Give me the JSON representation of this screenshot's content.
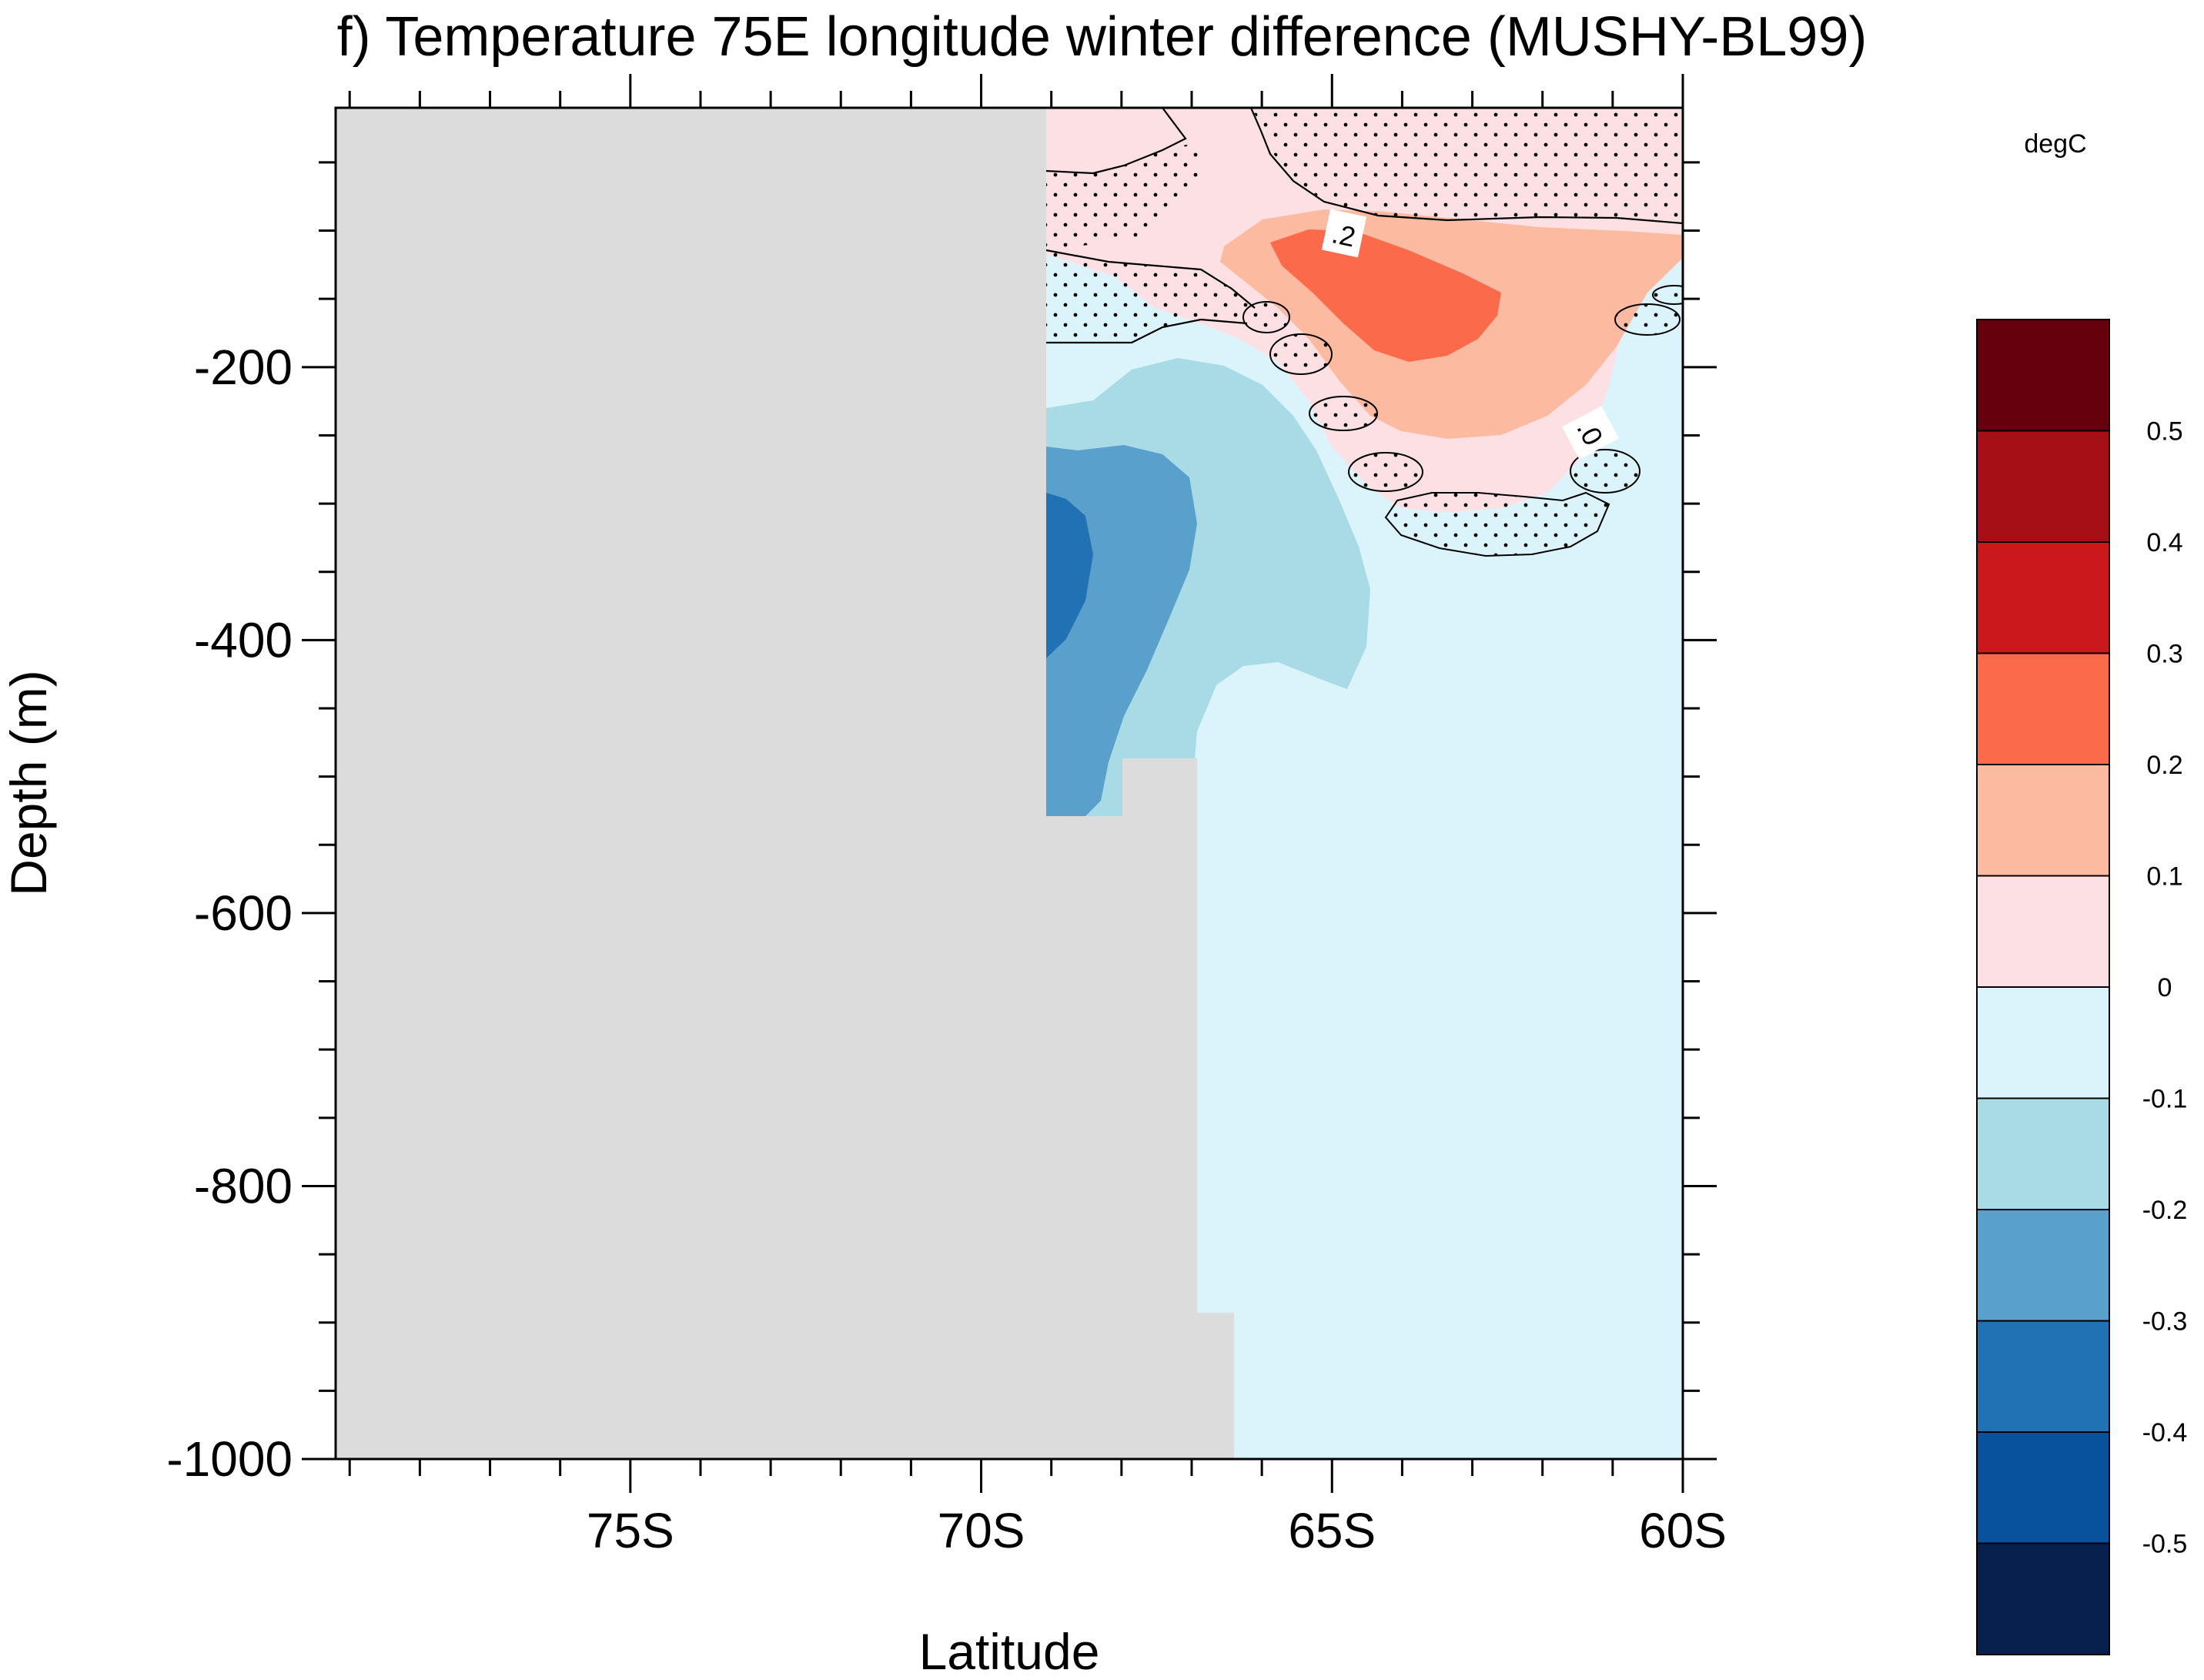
{
  "title": "f) Temperature 75E longitude winter difference (MUSHY-BL99)",
  "units": "degC",
  "chart_data": {
    "type": "contour",
    "title": "f) Temperature 75E longitude winter difference (MUSHY-BL99)",
    "xlabel": "Latitude",
    "ylabel": "Depth (m)",
    "x_ticks": [
      "75S",
      "70S",
      "65S",
      "60S"
    ],
    "y_ticks": [
      "-200",
      "-400",
      "-600",
      "-800",
      "-1000"
    ],
    "xlim": [
      -79.2,
      -60
    ],
    "ylim": [
      -1000,
      -10
    ],
    "contour_labels": [
      ".2",
      ".0"
    ],
    "colorbar": {
      "label": "degC",
      "levels": [
        "0.5",
        "0.4",
        "0.3",
        "0.2",
        "0.1",
        "0",
        "-0.1",
        "-0.2",
        "-0.3",
        "-0.4",
        "-0.5"
      ],
      "colors": [
        "#67000d",
        "#a50f15",
        "#cb181d",
        "#fb6a4a",
        "#fcbba1",
        "#fde0e3",
        "#dbf3fb",
        "#a8dbe5",
        "#5aa0cd",
        "#2171b5",
        "#08519c",
        "#08204e"
      ]
    },
    "regions": [
      {
        "name": "land-mask",
        "color": "#dcdcdc"
      },
      {
        "name": "background",
        "value_range": [
          -0.1,
          0
        ],
        "color": "#dbf3fb"
      },
      {
        "name": "pos-0-0.1",
        "value_range": [
          0,
          0.1
        ],
        "color": "#fde0e3"
      },
      {
        "name": "pos-0.1-0.2",
        "value_range": [
          0.1,
          0.2
        ],
        "color": "#fcbba1"
      },
      {
        "name": "pos-0.2-0.3",
        "value_range": [
          0.2,
          0.3
        ],
        "color": "#fb6a4a"
      },
      {
        "name": "neg-0.1-0.2",
        "value_range": [
          -0.2,
          -0.1
        ],
        "color": "#a8dbe5"
      },
      {
        "name": "neg-0.2-0.3",
        "value_range": [
          -0.3,
          -0.2
        ],
        "color": "#5aa0cd"
      },
      {
        "name": "neg-0.3-0.4",
        "value_range": [
          -0.4,
          -0.3
        ],
        "color": "#2171b5"
      }
    ]
  }
}
